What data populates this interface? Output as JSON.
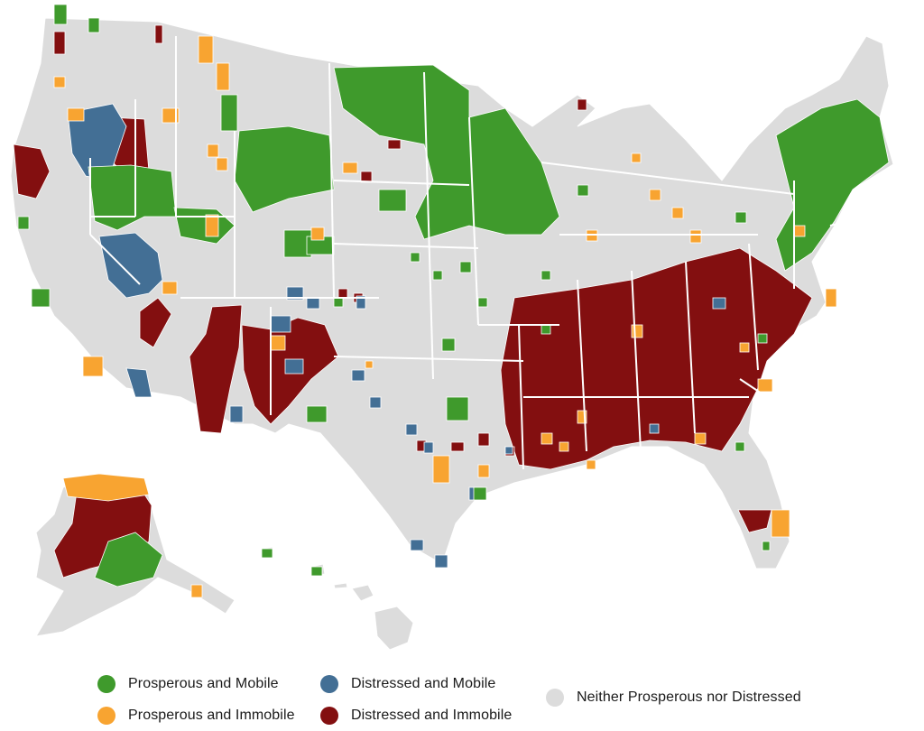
{
  "colors": {
    "prosperous_mobile": "#3f9a2c",
    "prosperous_immobile": "#f8a431",
    "distressed_mobile": "#436f95",
    "distressed_immobile": "#830f10",
    "neither": "#dcdcdc",
    "border": "#ffffff"
  },
  "legend": [
    {
      "key": "prosperous_mobile",
      "label": "Prosperous and Mobile",
      "icon": "green-dot-icon"
    },
    {
      "key": "prosperous_immobile",
      "label": "Prosperous and Immobile",
      "icon": "orange-dot-icon"
    },
    {
      "key": "distressed_mobile",
      "label": "Distressed and Mobile",
      "icon": "blue-dot-icon"
    },
    {
      "key": "distressed_immobile",
      "label": "Distressed and Immobile",
      "icon": "red-dot-icon"
    },
    {
      "key": "neither",
      "label": "Neither Prosperous nor Distressed",
      "icon": "gray-dot-icon"
    }
  ]
}
